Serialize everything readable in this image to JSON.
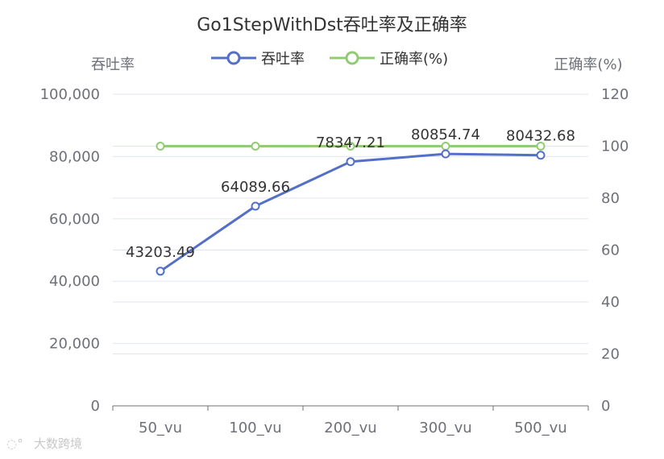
{
  "chart_data": {
    "type": "line",
    "title": "Go1StepWithDst吞吐率及正确率",
    "categories": [
      "50_vu",
      "100_vu",
      "200_vu",
      "300_vu",
      "500_vu"
    ],
    "y_left": {
      "label": "吞吐率",
      "range": [
        0,
        100000
      ],
      "ticks": [
        0,
        20000,
        40000,
        60000,
        80000,
        100000
      ],
      "tick_labels": [
        "0",
        "20,000",
        "40,000",
        "60,000",
        "80,000",
        "100,000"
      ]
    },
    "y_right": {
      "label": "正确率(%)",
      "range": [
        0,
        120
      ],
      "ticks": [
        0,
        20,
        40,
        60,
        80,
        100,
        120
      ],
      "tick_labels": [
        "0",
        "20",
        "40",
        "60",
        "80",
        "100",
        "120"
      ]
    },
    "series": [
      {
        "name": "吞吐率",
        "axis": "left",
        "values": [
          43203.49,
          64089.66,
          78347.21,
          80854.74,
          80432.68
        ],
        "data_labels": [
          "43203.49",
          "64089.66",
          "78347.21",
          "80854.74",
          "80432.68"
        ],
        "color": "#5470c6"
      },
      {
        "name": "正确率(%)",
        "axis": "right",
        "values": [
          100,
          100,
          100,
          100,
          100
        ],
        "color": "#91cc75"
      }
    ],
    "grid": true,
    "legend_position": "top-center"
  },
  "watermark": {
    "text": "大数跨境"
  }
}
